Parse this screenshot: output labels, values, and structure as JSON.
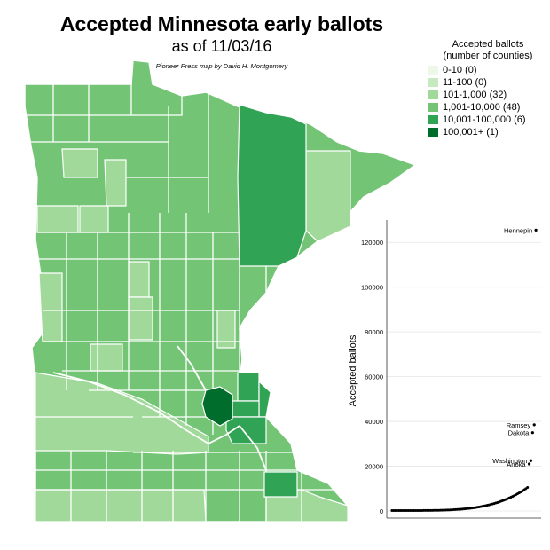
{
  "map": {
    "title": "Accepted Minnesota early ballots",
    "subtitle": "as of 11/03/16",
    "credit": "Pioneer Press map by David H. Montgomery"
  },
  "legend": {
    "title_line1": "Accepted ballots",
    "title_line2": "(number of counties)",
    "items": [
      {
        "label": "0-10 (0)",
        "color": "#edf8e9"
      },
      {
        "label": "11-100 (0)",
        "color": "#c7e9c0"
      },
      {
        "label": "101-1,000 (32)",
        "color": "#a1d99b"
      },
      {
        "label": "1,001-10,000 (48)",
        "color": "#74c476"
      },
      {
        "label": "10,001-100,000 (6)",
        "color": "#31a354"
      },
      {
        "label": "100,001+ (1)",
        "color": "#006d2c"
      }
    ]
  },
  "chart_data": {
    "type": "scatter",
    "ylabel": "Accepted ballots",
    "xlabel": "",
    "ylim": [
      0,
      130000
    ],
    "yticks": [
      0,
      20000,
      40000,
      60000,
      80000,
      100000,
      120000
    ],
    "labeled_points": [
      {
        "label": "Hennepin",
        "rank": 87,
        "value": 125500
      },
      {
        "label": "Ramsey",
        "rank": 86,
        "value": 38500
      },
      {
        "label": "Dakota",
        "rank": 85,
        "value": 35000
      },
      {
        "label": "Washington",
        "rank": 84,
        "value": 22500
      },
      {
        "label": "Anoka",
        "rank": 83,
        "value": 21000
      }
    ],
    "other_points": [
      {
        "rank_start": 1,
        "rank_end": 82,
        "value_start": 200,
        "value_end": 10500
      }
    ]
  }
}
